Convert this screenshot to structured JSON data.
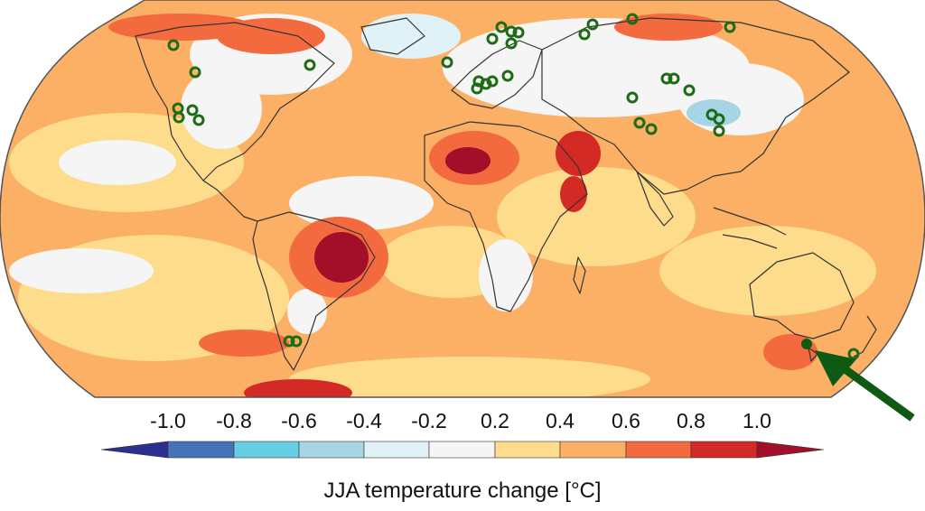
{
  "figure": {
    "colorbar": {
      "ticks": [
        "-1.0",
        "-0.8",
        "-0.6",
        "-0.4",
        "-0.2",
        "0.2",
        "0.4",
        "0.6",
        "0.8",
        "1.0"
      ],
      "bins": [
        "#2b2f8f",
        "#4573b8",
        "#67cde3",
        "#a6d5e6",
        "#e0f2f7",
        "#f5f5f5",
        "#fddc8c",
        "#fbb065",
        "#f36a3f",
        "#d42a26",
        "#a10f28"
      ],
      "caption": "JJA temperature change [°C]"
    },
    "highlight_arrow_color": "#0f5a12",
    "station_marker_color": "#1e6b16"
  }
}
